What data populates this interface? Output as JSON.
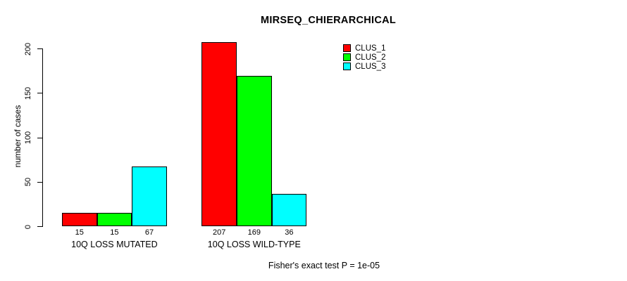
{
  "chart_data": {
    "type": "bar",
    "title": "MIRSEQ_CHIERARCHICAL",
    "ylabel": "number of cases",
    "xlabel": "",
    "footer": "Fisher's exact test P = 1e-05",
    "categories": [
      "10Q LOSS MUTATED",
      "10Q LOSS WILD-TYPE"
    ],
    "series": [
      {
        "name": "CLUS_1",
        "color": "#FF0000",
        "values": [
          15,
          207
        ]
      },
      {
        "name": "CLUS_2",
        "color": "#00FF00",
        "values": [
          15,
          169
        ]
      },
      {
        "name": "CLUS_3",
        "color": "#00FFFF",
        "values": [
          67,
          36
        ]
      }
    ],
    "ylim": [
      0,
      200
    ],
    "yticks": [
      0,
      50,
      100,
      150,
      200
    ],
    "grid": false,
    "legend_position": "top-right",
    "bar_value_labels_shown": true,
    "colors": {
      "background": "#FFFFFF",
      "text": "#000000",
      "axis": "#000000"
    }
  }
}
